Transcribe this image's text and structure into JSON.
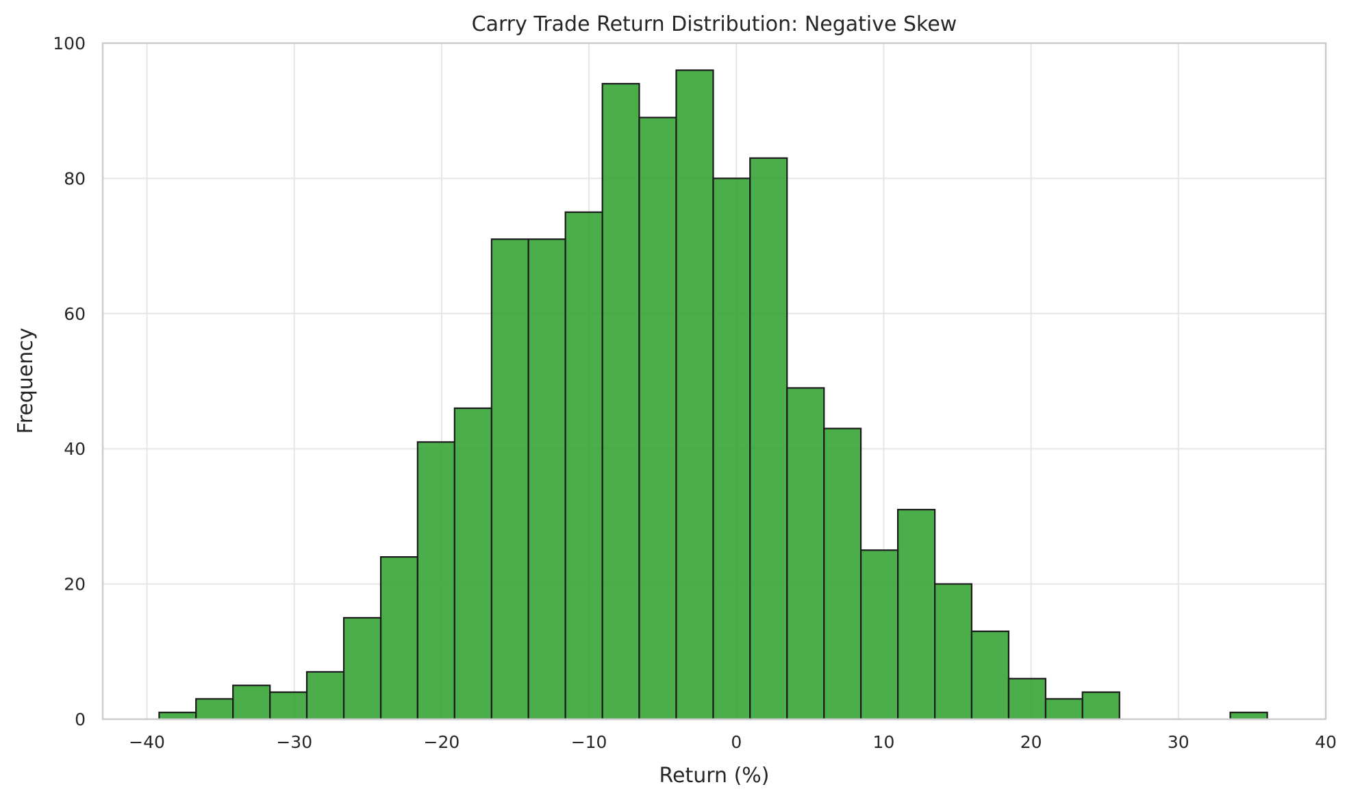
{
  "chart_data": {
    "type": "bar",
    "title": "Carry Trade Return Distribution: Negative Skew",
    "xlabel": "Return (%)",
    "ylabel": "Frequency",
    "xlim": [
      -43,
      40
    ],
    "ylim": [
      0,
      100
    ],
    "grid": true,
    "bar_color": "#2ca02c",
    "edge_color": "#1a1a1a",
    "x_ticks": [
      -40,
      -30,
      -20,
      -10,
      0,
      10,
      20,
      30,
      40
    ],
    "x_tick_labels": [
      "−40",
      "−30",
      "−20",
      "−10",
      "0",
      "10",
      "20",
      "30",
      "40"
    ],
    "y_ticks": [
      0,
      20,
      40,
      60,
      80,
      100
    ],
    "y_tick_labels": [
      "0",
      "20",
      "40",
      "60",
      "80",
      "100"
    ],
    "bin_edges": [
      -39.17,
      -36.67,
      -34.16,
      -31.65,
      -29.15,
      -26.64,
      -24.13,
      -21.63,
      -19.12,
      -16.61,
      -14.11,
      -11.6,
      -9.09,
      -6.59,
      -4.08,
      -1.57,
      0.93,
      3.44,
      5.95,
      8.45,
      10.96,
      13.47,
      15.97,
      18.48,
      20.99,
      23.49,
      26.0,
      28.51,
      31.01,
      33.52,
      36.03
    ],
    "values": [
      1,
      3,
      5,
      4,
      7,
      15,
      24,
      41,
      46,
      71,
      71,
      75,
      94,
      89,
      96,
      80,
      83,
      49,
      43,
      25,
      31,
      20,
      13,
      6,
      3,
      4,
      0,
      0,
      0,
      1
    ]
  }
}
